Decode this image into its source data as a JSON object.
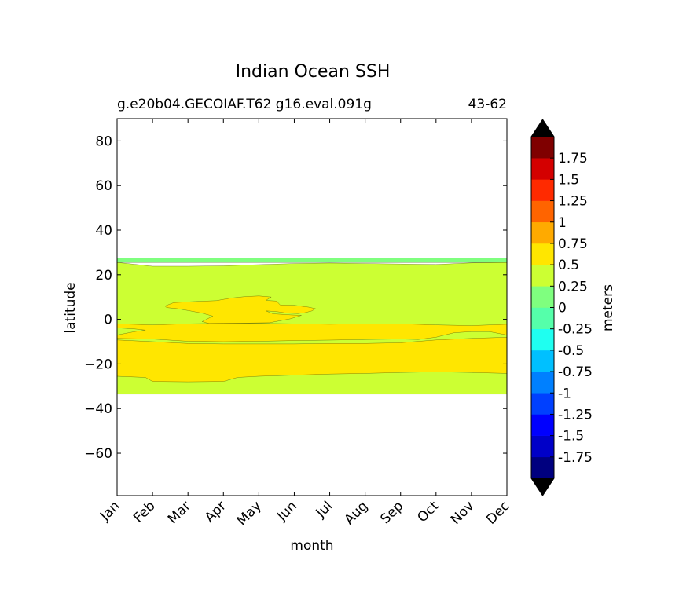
{
  "chart_data": {
    "type": "contour",
    "title": "Indian Ocean SSH",
    "subtitle_left": "g.e20b04.GECOIAF.T62 g16.eval.091g",
    "subtitle_right": "43-62",
    "xlabel": "month",
    "ylabel": "latitude",
    "xlim": [
      0,
      11
    ],
    "ylim": [
      -79,
      90
    ],
    "x_ticks": [
      "Jan",
      "Feb",
      "Mar",
      "Apr",
      "May",
      "Jun",
      "Jul",
      "Aug",
      "Sep",
      "Oct",
      "Nov",
      "Dec"
    ],
    "y_ticks": [
      80,
      60,
      40,
      20,
      0,
      -20,
      -40,
      -60
    ],
    "y_tick_labels": [
      "80",
      "60",
      "40",
      "20",
      "0",
      "−20",
      "−40",
      "−60"
    ],
    "colorbar": {
      "label": "meters",
      "levels": [
        -2.0,
        -1.75,
        -1.5,
        -1.25,
        -1.0,
        -0.75,
        -0.5,
        -0.25,
        0.0,
        0.25,
        0.5,
        0.75,
        1.0,
        1.25,
        1.5,
        1.75,
        2.0
      ],
      "tick_values": [
        1.75,
        1.5,
        1.25,
        1.0,
        0.75,
        0.5,
        0.25,
        0.0,
        -0.25,
        -0.5,
        -0.75,
        -1.0,
        -1.25,
        -1.5,
        -1.75
      ],
      "tick_labels": [
        "1.75",
        "1.5",
        "1.25",
        "1",
        "0.75",
        "0.5",
        "0.25",
        "0",
        "-0.25",
        "-0.5",
        "-0.75",
        "-1",
        "-1.25",
        "-1.5",
        "-1.75"
      ],
      "colors": [
        "#00007f",
        "#0000c8",
        "#0000ff",
        "#0040ff",
        "#0080ff",
        "#00c0ff",
        "#1ffff0",
        "#55ffaa",
        "#7fff7f",
        "#ccff33",
        "#ffe600",
        "#ffaa00",
        "#ff6400",
        "#ff2a00",
        "#d40000",
        "#7f0000"
      ],
      "extend_color": "#000000"
    },
    "regions": [
      {
        "name": "band-0-to-0.25",
        "level_range": [
          0.0,
          0.25
        ],
        "color": "#7fff7f",
        "outline": [
          [
            0,
            27.5
          ],
          [
            11,
            27.5
          ],
          [
            11,
            25.5
          ],
          [
            0,
            25.5
          ]
        ]
      },
      {
        "name": "band-0.25-to-0.5",
        "level_range": [
          0.25,
          0.5
        ],
        "color": "#ccff33",
        "outline": [
          [
            0,
            25.5
          ],
          [
            1,
            23.8
          ],
          [
            2,
            23.8
          ],
          [
            3,
            24.0
          ],
          [
            4,
            24.5
          ],
          [
            5,
            25.0
          ],
          [
            6,
            25.2
          ],
          [
            7,
            25.0
          ],
          [
            8,
            24.8
          ],
          [
            9,
            24.6
          ],
          [
            10,
            25.3
          ],
          [
            11,
            25.5
          ],
          [
            11,
            -33.5
          ],
          [
            0,
            -33.5
          ]
        ]
      },
      {
        "name": "band-0.5-to-0.75-north",
        "level_range": [
          0.5,
          0.75
        ],
        "color": "#ffe600",
        "outline": [
          [
            1.35,
            6
          ],
          [
            1.6,
            7.5
          ],
          [
            2.2,
            8
          ],
          [
            2.8,
            8.4
          ],
          [
            3.2,
            9.5
          ],
          [
            3.6,
            10.2
          ],
          [
            4.0,
            10.5
          ],
          [
            4.35,
            10.0
          ],
          [
            4.2,
            8.5
          ],
          [
            4.5,
            8.2
          ],
          [
            4.6,
            6.5
          ],
          [
            5.0,
            6.3
          ],
          [
            5.4,
            5.5
          ],
          [
            5.6,
            4.8
          ],
          [
            5.5,
            3.8
          ],
          [
            5.3,
            3.0
          ],
          [
            5.1,
            2.6
          ],
          [
            4.8,
            2.8
          ],
          [
            4.5,
            3.5
          ],
          [
            4.2,
            3.8
          ],
          [
            4.4,
            2.5
          ],
          [
            4.9,
            2.0
          ],
          [
            5.2,
            1.8
          ],
          [
            4.9,
            0.3
          ],
          [
            4.3,
            -1.5
          ],
          [
            3.5,
            -1.7
          ],
          [
            3.0,
            -1.8
          ],
          [
            2.6,
            -1.9
          ],
          [
            2.4,
            -1.0
          ],
          [
            2.7,
            1.5
          ],
          [
            2.4,
            2.8
          ],
          [
            2.0,
            4.0
          ],
          [
            1.7,
            4.8
          ],
          [
            1.4,
            5.3
          ]
        ]
      },
      {
        "name": "band-0.5-to-0.75-equatorial",
        "level_range": [
          0.5,
          0.75
        ],
        "color": "#ffe600",
        "outline": [
          [
            0,
            -2.0
          ],
          [
            1,
            -2.5
          ],
          [
            2,
            -2.0
          ],
          [
            3,
            -1.8
          ],
          [
            4,
            -1.8
          ],
          [
            5,
            -2.0
          ],
          [
            6,
            -2.2
          ],
          [
            7,
            -2.0
          ],
          [
            8,
            -2.0
          ],
          [
            9,
            -2.5
          ],
          [
            10,
            -2.8
          ],
          [
            11,
            -2.2
          ],
          [
            11,
            -7.0
          ],
          [
            10.5,
            -5.5
          ],
          [
            10,
            -5.5
          ],
          [
            9.5,
            -6.0
          ],
          [
            9,
            -8.0
          ],
          [
            8.5,
            -9.0
          ],
          [
            8,
            -8.8
          ],
          [
            7,
            -9.0
          ],
          [
            6,
            -9.3
          ],
          [
            5,
            -9.5
          ],
          [
            4,
            -9.8
          ],
          [
            3,
            -10.0
          ],
          [
            2,
            -9.8
          ],
          [
            1,
            -8.8
          ],
          [
            0,
            -8.5
          ],
          [
            0,
            -7.0
          ],
          [
            0.5,
            -5.5
          ],
          [
            0.8,
            -4.8
          ],
          [
            0.5,
            -4.3
          ],
          [
            0,
            -3.8
          ]
        ]
      },
      {
        "name": "band-0.5-to-0.75-south",
        "level_range": [
          0.5,
          0.75
        ],
        "color": "#ffe600",
        "outline": [
          [
            0,
            -9.2
          ],
          [
            1,
            -10.0
          ],
          [
            2,
            -10.8
          ],
          [
            3,
            -11.0
          ],
          [
            4,
            -11.0
          ],
          [
            5,
            -11.0
          ],
          [
            6,
            -10.8
          ],
          [
            7,
            -10.8
          ],
          [
            8,
            -10.5
          ],
          [
            9,
            -9.2
          ],
          [
            10,
            -8.5
          ],
          [
            11,
            -8.0
          ],
          [
            11,
            -24.2
          ],
          [
            10,
            -23.8
          ],
          [
            9,
            -23.5
          ],
          [
            8,
            -23.8
          ],
          [
            7,
            -24.2
          ],
          [
            6,
            -24.5
          ],
          [
            5,
            -25.0
          ],
          [
            4,
            -25.5
          ],
          [
            3.4,
            -26.0
          ],
          [
            3.0,
            -27.8
          ],
          [
            2,
            -28.0
          ],
          [
            1,
            -27.8
          ],
          [
            0.8,
            -26.0
          ],
          [
            0,
            -25.5
          ]
        ]
      }
    ]
  }
}
